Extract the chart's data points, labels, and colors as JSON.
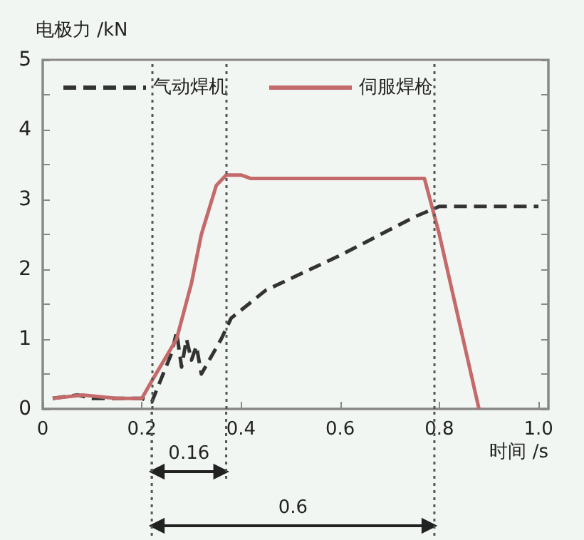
{
  "chart_data": {
    "type": "line",
    "xlabel": "时间 /s",
    "ylabel": "电极力 /kN",
    "xlim": [
      0,
      1.02
    ],
    "xticks": [
      0,
      0.2,
      0.4,
      0.6,
      0.8,
      {
        "value": 1,
        "label": "1.0"
      }
    ],
    "ylim": [
      0,
      5
    ],
    "yticks": [
      0,
      1,
      2,
      3,
      4,
      5
    ],
    "grid": false,
    "legend": "top left",
    "marker": "none",
    "series": [
      {
        "name": "气动焊机",
        "color": "#333333",
        "line_style": "dashed",
        "x": [
          0.02,
          0.07,
          0.1,
          0.15,
          0.2,
          0.22,
          0.26,
          0.27,
          0.28,
          0.29,
          0.3,
          0.31,
          0.32,
          0.36,
          0.38,
          0.45,
          0.6,
          0.75,
          0.8,
          1.0
        ],
        "values": [
          0.15,
          0.2,
          0.15,
          0.15,
          0.15,
          0.1,
          0.8,
          1.1,
          0.6,
          1.0,
          0.7,
          0.9,
          0.5,
          1.0,
          1.3,
          1.7,
          2.2,
          2.75,
          2.9,
          2.9
        ]
      },
      {
        "name": "伺服焊枪",
        "color": "#c46a6a",
        "line_style": "solid",
        "x": [
          0.02,
          0.08,
          0.15,
          0.2,
          0.22,
          0.27,
          0.3,
          0.32,
          0.35,
          0.37,
          0.4,
          0.42,
          0.77,
          0.8,
          0.88
        ],
        "values": [
          0.15,
          0.2,
          0.15,
          0.15,
          0.4,
          1.0,
          1.8,
          2.5,
          3.2,
          3.35,
          3.35,
          3.3,
          3.3,
          2.5,
          0
        ]
      }
    ],
    "ref_lines": [
      {
        "axis": "x",
        "value": 0.22,
        "color": "#555555",
        "line_style": "dotted"
      },
      {
        "axis": "x",
        "value": 0.37,
        "color": "#555555",
        "line_style": "dotted"
      },
      {
        "axis": "x",
        "value": 0.79,
        "color": "#555555",
        "line_style": "dotted"
      }
    ],
    "annotations": [
      "0.16",
      "0.6"
    ]
  }
}
